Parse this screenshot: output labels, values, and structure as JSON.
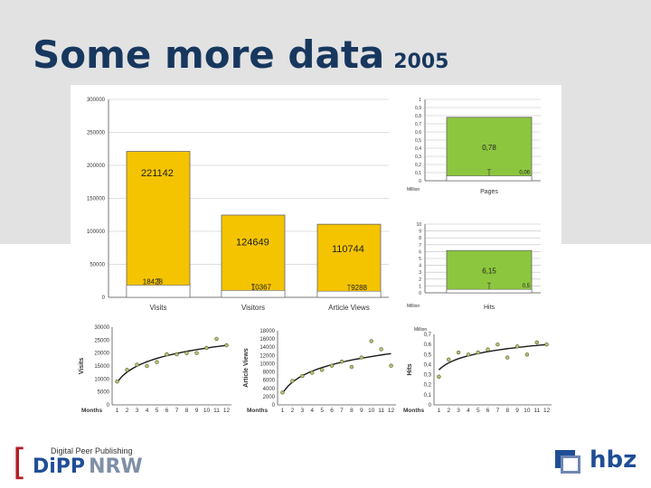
{
  "title": {
    "main": "Some more data",
    "year": "2005"
  },
  "logos": {
    "dipp_sub": "Digital Peer Publishing",
    "dipp_main": "DiPP",
    "dipp_nrw": "NRW",
    "hbz": "hbz"
  },
  "colors": {
    "bar_yellow": "#f5c400",
    "bar_green": "#8cc63e",
    "title_blue": "#17375e",
    "logo_red": "#b21f24",
    "logo_blue": "#1f4e96"
  },
  "chart_data": [
    {
      "id": "main-bars",
      "type": "bar",
      "categories": [
        "Visits",
        "Visitors",
        "Article Views"
      ],
      "series": [
        {
          "values": [
            221142,
            124649,
            110744
          ]
        },
        {
          "values": [
            18428,
            10367,
            9288
          ]
        }
      ],
      "value_labels_top": [
        "221142",
        "124649",
        "110744"
      ],
      "value_labels_bottom": [
        "18428",
        "10367",
        "9288"
      ],
      "yticks": [
        "0",
        "50000",
        "100000",
        "150000",
        "200000",
        "250000",
        "300000"
      ],
      "ylim": [
        0,
        300000
      ],
      "grid": true
    },
    {
      "id": "pages-bars",
      "type": "bar",
      "categories": [
        "Pages"
      ],
      "series": [
        {
          "values": [
            0.78
          ]
        },
        {
          "values": [
            0.06
          ]
        }
      ],
      "value_labels_top": [
        "0,78"
      ],
      "value_labels_bottom": [
        "0,06"
      ],
      "yticks": [
        "0",
        "0,1",
        "0,2",
        "0,3",
        "0,4",
        "0,5",
        "0,6",
        "0,7",
        "0,8",
        "0,9",
        "1"
      ],
      "ylim": [
        0,
        1
      ],
      "unit_label": "Million",
      "grid": true
    },
    {
      "id": "hits-bars",
      "type": "bar",
      "categories": [
        "Hits"
      ],
      "series": [
        {
          "values": [
            6.15
          ]
        },
        {
          "values": [
            0.5
          ]
        }
      ],
      "value_labels_top": [
        "6,15"
      ],
      "value_labels_bottom": [
        "0,5"
      ],
      "yticks": [
        "0",
        "1",
        "2",
        "3",
        "4",
        "5",
        "6",
        "7",
        "8",
        "9",
        "10"
      ],
      "ylim": [
        0,
        10
      ],
      "unit_label": "Million",
      "grid": true
    },
    {
      "id": "visits-scatter",
      "type": "scatter",
      "x": [
        1,
        2,
        3,
        4,
        5,
        6,
        7,
        8,
        9,
        10,
        11,
        12
      ],
      "y": [
        9000,
        13500,
        15500,
        15000,
        16500,
        19500,
        19500,
        20000,
        20000,
        22000,
        25500,
        23000
      ],
      "trend": "logarithmic",
      "xlabel": "Months",
      "ylabel": "Visits",
      "xticks": [
        "1",
        "2",
        "3",
        "4",
        "5",
        "6",
        "7",
        "8",
        "9",
        "10",
        "11",
        "12"
      ],
      "yticks": [
        "0",
        "5000",
        "10000",
        "15000",
        "20000",
        "25000",
        "30000"
      ],
      "ylim": [
        0,
        30000
      ]
    },
    {
      "id": "article-views-scatter",
      "type": "scatter",
      "x": [
        1,
        2,
        3,
        4,
        5,
        6,
        7,
        8,
        9,
        10,
        11,
        12
      ],
      "y": [
        3000,
        5800,
        7000,
        7800,
        8500,
        9500,
        10500,
        9200,
        11500,
        15500,
        13500,
        9500
      ],
      "trend": "logarithmic",
      "xlabel": "Months",
      "ylabel": "Article Views",
      "xticks": [
        "1",
        "2",
        "3",
        "4",
        "5",
        "6",
        "7",
        "8",
        "9",
        "10",
        "11",
        "12"
      ],
      "yticks": [
        "0",
        "2000",
        "4000",
        "6000",
        "8000",
        "10000",
        "12000",
        "14000",
        "16000",
        "18000"
      ],
      "ylim": [
        0,
        18000
      ]
    },
    {
      "id": "hits-scatter",
      "type": "scatter",
      "x": [
        1,
        2,
        3,
        4,
        5,
        6,
        7,
        8,
        9,
        10,
        11,
        12
      ],
      "y": [
        0.28,
        0.45,
        0.52,
        0.5,
        0.52,
        0.55,
        0.6,
        0.47,
        0.58,
        0.5,
        0.62,
        0.6
      ],
      "trend": "logarithmic",
      "xlabel": "Months",
      "ylabel": "Hits",
      "unit_label": "Million",
      "xticks": [
        "1",
        "2",
        "3",
        "4",
        "5",
        "6",
        "7",
        "8",
        "9",
        "10",
        "11",
        "12"
      ],
      "yticks": [
        "0",
        "0,1",
        "0,2",
        "0,3",
        "0,4",
        "0,5",
        "0,6",
        "0,7"
      ],
      "ylim": [
        0,
        0.7
      ]
    }
  ]
}
